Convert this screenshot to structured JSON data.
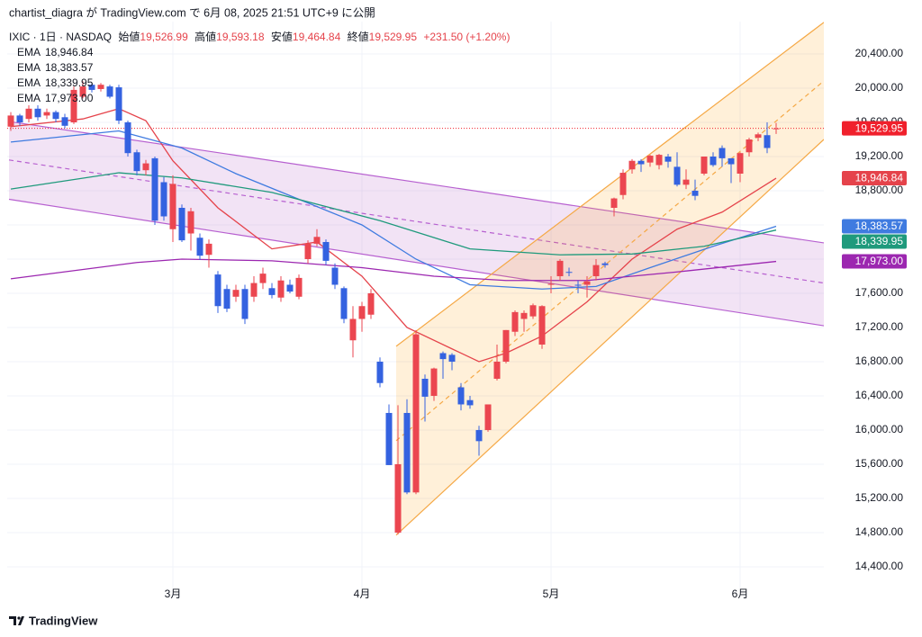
{
  "page": {
    "attribution": "chartist_diagra が TradingView.com で 6月 08, 2025 21:51 UTC+9 に公開",
    "brand": "TradingView"
  },
  "chart_data": {
    "type": "candlestick",
    "symbol": "IXIC · 1日 · NASDAQ",
    "ohlc_names": [
      "始値",
      "高値",
      "安値",
      "終値"
    ],
    "ohlc_labels": [
      "19,526.99",
      "19,593.18",
      "19,464.84",
      "19,529.95"
    ],
    "change_label": "+231.50 (+1.20%)",
    "up_color": "#eb4650",
    "down_color": "#3462e0",
    "categories": [
      null,
      null,
      null,
      null,
      null,
      null,
      null,
      null,
      null,
      null,
      null,
      null,
      null,
      null,
      null,
      null,
      null,
      null,
      "3月",
      null,
      null,
      null,
      null,
      null,
      null,
      null,
      null,
      null,
      null,
      null,
      null,
      null,
      null,
      null,
      null,
      null,
      null,
      null,
      null,
      "4月",
      null,
      null,
      null,
      null,
      null,
      null,
      null,
      null,
      null,
      null,
      null,
      null,
      null,
      null,
      null,
      null,
      null,
      null,
      null,
      null,
      "5月",
      null,
      null,
      null,
      null,
      null,
      null,
      null,
      null,
      null,
      null,
      null,
      null,
      null,
      null,
      null,
      null,
      null,
      null,
      null,
      null,
      "6月",
      null,
      null,
      null,
      null
    ],
    "open": [
      19550,
      19680,
      19640,
      19760,
      19680,
      19720,
      19660,
      19600,
      19900,
      20040,
      19990,
      20020,
      20010,
      19600,
      19250,
      19040,
      19180,
      18900,
      18350,
      18600,
      18300,
      18250,
      18050,
      17820,
      17650,
      17560,
      17650,
      17560,
      17720,
      17660,
      17550,
      17700,
      17560,
      18000,
      18180,
      18200,
      17900,
      17660,
      17050,
      17300,
      17350,
      16800,
      16200,
      14800,
      16200,
      15270,
      16600,
      16400,
      16900,
      16880,
      16500,
      16350,
      16000,
      16000,
      16600,
      16800,
      17150,
      17300,
      17330,
      17000,
      17700,
      17800,
      17850,
      17700,
      17700,
      17800,
      17950,
      18600,
      18750,
      19050,
      19150,
      19130,
      19100,
      19200,
      19080,
      18870,
      18800,
      19000,
      19200,
      19300,
      19180,
      19000,
      19250,
      19420,
      19450,
      19526.99
    ],
    "high": [
      19720,
      19700,
      19800,
      19800,
      19760,
      19740,
      19700,
      20020,
      20080,
      20060,
      20060,
      20040,
      20040,
      19620,
      19280,
      19160,
      19200,
      18960,
      18980,
      18640,
      18600,
      18300,
      18230,
      17860,
      17700,
      17700,
      17700,
      17800,
      17900,
      17720,
      17800,
      17760,
      17820,
      18220,
      18350,
      18230,
      17950,
      17680,
      17450,
      17500,
      17650,
      16850,
      16300,
      16290,
      16360,
      17170,
      16650,
      16730,
      16920,
      16900,
      16550,
      16400,
      16050,
      16300,
      17000,
      17170,
      17400,
      17400,
      17480,
      17460,
      17800,
      18000,
      17900,
      17750,
      17800,
      18000,
      17970,
      18720,
      19050,
      19170,
      19170,
      19220,
      19230,
      19230,
      19250,
      19050,
      18930,
      19200,
      19250,
      19330,
      19180,
      19250,
      19420,
      19480,
      19600,
      19593.18
    ],
    "low": [
      19500,
      19560,
      19600,
      19620,
      19640,
      19600,
      19530,
      19580,
      19880,
      19950,
      19960,
      19880,
      19580,
      19200,
      18980,
      18980,
      18400,
      18450,
      18200,
      18200,
      18100,
      17990,
      17900,
      17370,
      17380,
      17500,
      17240,
      17500,
      17650,
      17540,
      17500,
      17600,
      17530,
      17950,
      18150,
      17930,
      17650,
      17250,
      16850,
      17150,
      17300,
      16500,
      15590,
      14780,
      15250,
      15250,
      16100,
      16340,
      16600,
      16700,
      16230,
      16250,
      15700,
      15980,
      16580,
      16780,
      17100,
      17150,
      17300,
      16950,
      17600,
      17750,
      17800,
      17600,
      17550,
      17750,
      17900,
      18500,
      18700,
      19000,
      19020,
      19080,
      19050,
      19070,
      18850,
      18820,
      18690,
      18980,
      19080,
      19080,
      18890,
      18900,
      19200,
      19380,
      19240,
      19464.84
    ],
    "close": [
      19680,
      19600,
      19760,
      19660,
      19720,
      19640,
      19560,
      19980,
      20020,
      19980,
      20040,
      19900,
      19620,
      19240,
      19030,
      19120,
      18450,
      18500,
      18880,
      18220,
      18560,
      18040,
      18180,
      17450,
      17420,
      17640,
      17300,
      17720,
      17830,
      17580,
      17750,
      17620,
      17780,
      18180,
      18260,
      17980,
      17700,
      17300,
      17300,
      17450,
      17600,
      16550,
      15590,
      15600,
      15270,
      17120,
      16390,
      16720,
      16830,
      16800,
      16300,
      16290,
      15870,
      16300,
      16800,
      17170,
      17380,
      17370,
      17460,
      17450,
      17710,
      17980,
      17840,
      17690,
      17740,
      17930,
      17930,
      18710,
      19010,
      19150,
      19110,
      19210,
      19220,
      19140,
      18870,
      18930,
      18740,
      19200,
      19100,
      19180,
      19110,
      19240,
      19400,
      19460,
      19300,
      19529.95
    ],
    "series": [
      {
        "name": "EMA",
        "color": "#e5434b",
        "label": "18,946.84",
        "x": [
          0,
          8,
          12,
          15,
          18,
          23,
          29,
          34,
          39,
          44,
          49,
          52,
          55,
          59,
          64,
          69,
          74,
          79,
          85
        ],
        "values": [
          19550,
          19640,
          19760,
          19620,
          19150,
          18600,
          18120,
          18200,
          17800,
          17200,
          16950,
          16800,
          16900,
          17100,
          17500,
          18000,
          18350,
          18550,
          18946.84
        ]
      },
      {
        "name": "EMA",
        "color": "#3f7be0",
        "label": "18,383.57",
        "x": [
          0,
          12,
          19,
          25,
          32,
          39,
          45,
          51,
          59,
          65,
          71,
          78,
          85
        ],
        "values": [
          19370,
          19500,
          19300,
          19000,
          18700,
          18400,
          18000,
          17700,
          17650,
          17680,
          17900,
          18150,
          18383.57
        ]
      },
      {
        "name": "EMA",
        "color": "#1f9a7c",
        "label": "18,339.95",
        "x": [
          0,
          12,
          19,
          29,
          41,
          51,
          61,
          69,
          77,
          85
        ],
        "values": [
          18820,
          19010,
          18950,
          18780,
          18450,
          18120,
          18050,
          18060,
          18150,
          18339.95
        ]
      },
      {
        "name": "EMA",
        "color": "#9c27b0",
        "label": "17,973.00",
        "x": [
          0,
          14,
          19,
          29,
          39,
          47,
          55,
          64,
          74,
          85
        ],
        "values": [
          17770,
          17960,
          18000,
          17980,
          17900,
          17800,
          17750,
          17750,
          17850,
          17973
        ]
      }
    ],
    "channels": [
      {
        "color": "#b760d0",
        "fill": "rgba(156,39,176,0.13)",
        "x": [
          -0.2,
          90.3
        ],
        "upper": [
          19610,
          18190
        ],
        "middle": [
          19160,
          17720
        ],
        "lower": [
          18700,
          17220
        ]
      },
      {
        "color": "#f5a845",
        "fill": "rgba(255,152,0,0.15)",
        "x": [
          42.8,
          90.3
        ],
        "upper": [
          16980,
          20770
        ],
        "middle": [
          15875,
          20085
        ],
        "lower": [
          14770,
          19400
        ]
      }
    ],
    "close_tag": {
      "value": 19529.95,
      "color": "#f0202c"
    },
    "xlim": [
      -0.2,
      90.3
    ],
    "ylim": [
      14147,
      20779
    ],
    "yticks": [
      {
        "value": 14400,
        "label": "14,400.00"
      },
      {
        "value": 14800,
        "label": "14,800.00"
      },
      {
        "value": 15200,
        "label": "15,200.00"
      },
      {
        "value": 15600,
        "label": "15,600.00"
      },
      {
        "value": 16000,
        "label": "16,000.00"
      },
      {
        "value": 16400,
        "label": "16,400.00"
      },
      {
        "value": 16800,
        "label": "16,800.00"
      },
      {
        "value": 17200,
        "label": "17,200.00"
      },
      {
        "value": 17600,
        "label": "17,600.00"
      },
      {
        "value": 18000,
        "label": "18,000.00"
      },
      {
        "value": 18400,
        "label": "18,400.00"
      },
      {
        "value": 18800,
        "label": "18,800.00"
      },
      {
        "value": 19200,
        "label": "19,200.00"
      },
      {
        "value": 19600,
        "label": "19,600.00"
      },
      {
        "value": 20000,
        "label": "20,000.00"
      },
      {
        "value": 20400,
        "label": "20,400.00"
      }
    ],
    "grid": true
  }
}
